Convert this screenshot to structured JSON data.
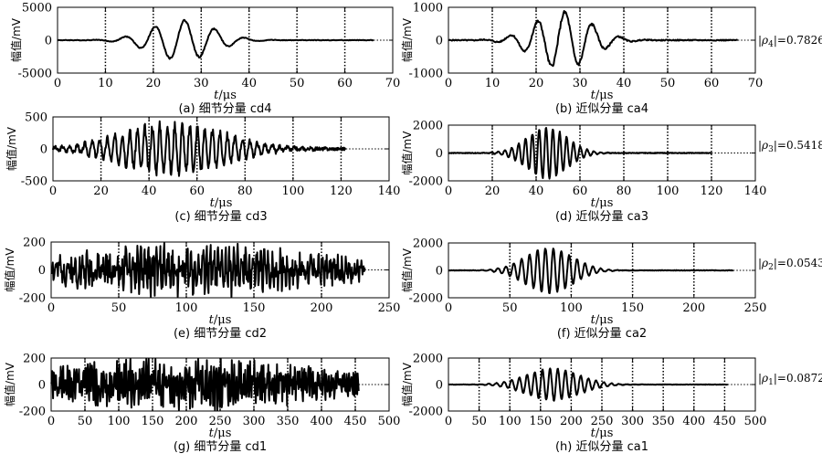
{
  "chart_data": [
    {
      "id": "cd4",
      "type": "line",
      "caption": "(a) 细节分量 cd4",
      "xlabel": "t/μs",
      "ylabel": "幅值/mV",
      "xlim": [
        0,
        70
      ],
      "xticks": [
        0,
        10,
        20,
        30,
        40,
        50,
        60,
        70
      ],
      "ylim": [
        -5000,
        5000
      ],
      "yticks": [
        5000,
        0,
        -5000
      ],
      "dotted_v": [
        10,
        20,
        30,
        40,
        50,
        60
      ],
      "series": [
        {
          "x_end": 66,
          "amp": 3000,
          "center": 26,
          "width": 9,
          "freq": 0.16,
          "noise": 100,
          "seed": 4,
          "points": 440
        }
      ]
    },
    {
      "id": "ca4",
      "type": "line",
      "caption": "(b) 近似分量 ca4",
      "xlabel": "t/μs",
      "ylabel": "幅值/mV",
      "xlim": [
        0,
        70
      ],
      "xticks": [
        0,
        10,
        20,
        30,
        40,
        50,
        60,
        70
      ],
      "ylim": [
        -1000,
        1000
      ],
      "yticks": [
        1000,
        0,
        -1000
      ],
      "dotted_v": [
        10,
        20,
        30,
        40,
        50,
        60
      ],
      "rho": "|ρ4|=0.7826",
      "series": [
        {
          "x_end": 66,
          "amp": 850,
          "center": 26,
          "width": 9,
          "freq": 0.16,
          "noise": 40,
          "seed": 5,
          "points": 440
        }
      ]
    },
    {
      "id": "cd3",
      "type": "line",
      "caption": "(c) 细节分量 cd3",
      "xlabel": "t/μs",
      "ylabel": "幅值/mV",
      "xlim": [
        0,
        140
      ],
      "xticks": [
        0,
        20,
        40,
        60,
        80,
        100,
        120,
        140
      ],
      "ylim": [
        -500,
        500
      ],
      "yticks": [
        500,
        0,
        -500
      ],
      "dotted_v": [
        20,
        40,
        60,
        80,
        100,
        120
      ],
      "series": [
        {
          "x_end": 122,
          "amp": 380,
          "center": 50,
          "width": 30,
          "freq": 0.32,
          "noise": 60,
          "seed": 3,
          "points": 560
        }
      ]
    },
    {
      "id": "ca3",
      "type": "line",
      "caption": "(d) 近似分量 ca3",
      "xlabel": "t/μs",
      "ylabel": "幅值/mV",
      "xlim": [
        0,
        140
      ],
      "xticks": [
        0,
        20,
        40,
        60,
        80,
        100,
        120,
        140
      ],
      "ylim": [
        -2000,
        2000
      ],
      "yticks": [
        2000,
        0,
        -2000
      ],
      "dotted_v": [
        20,
        40,
        60,
        80,
        100,
        120
      ],
      "rho": "|ρ3|=0.5418",
      "series": [
        {
          "x_end": 120,
          "amp": 1800,
          "center": 45,
          "width": 13,
          "freq": 0.32,
          "noise": 60,
          "seed": 6,
          "points": 560
        }
      ]
    },
    {
      "id": "cd2",
      "type": "line",
      "caption": "(e) 细节分量 cd2",
      "xlabel": "t/μs",
      "ylabel": "幅值/mV",
      "xlim": [
        0,
        250
      ],
      "xticks": [
        0,
        50,
        100,
        150,
        200,
        250
      ],
      "ylim": [
        -200,
        200
      ],
      "yticks": [
        200,
        0,
        -200
      ],
      "dotted_v": [
        50,
        100,
        150,
        200
      ],
      "series": [
        {
          "x_end": 232,
          "amp": 90,
          "center": 100,
          "width": 120,
          "freq": 0.35,
          "noise": 90,
          "seed": 2,
          "points": 560
        }
      ]
    },
    {
      "id": "ca2",
      "type": "line",
      "caption": "(f) 近似分量 ca2",
      "xlabel": "t/μs",
      "ylabel": "幅值/mV",
      "xlim": [
        0,
        250
      ],
      "xticks": [
        0,
        50,
        100,
        150,
        200,
        250
      ],
      "ylim": [
        -2000,
        2000
      ],
      "yticks": [
        2000,
        0,
        -2000
      ],
      "dotted_v": [
        50,
        100,
        150,
        200
      ],
      "rho": "|ρ2|=0.0543",
      "series": [
        {
          "x_end": 232,
          "amp": 1650,
          "center": 82,
          "width": 27,
          "freq": 0.155,
          "noise": 50,
          "seed": 7,
          "points": 560
        }
      ]
    },
    {
      "id": "cd1",
      "type": "line",
      "caption": "(g) 细节分量 cd1",
      "xlabel": "t/μs",
      "ylabel": "幅值/mV",
      "xlim": [
        0,
        500
      ],
      "xticks": [
        0,
        50,
        100,
        150,
        200,
        250,
        300,
        350,
        400,
        450,
        500
      ],
      "ylim": [
        -200,
        200
      ],
      "yticks": [
        200,
        0,
        -200
      ],
      "dotted_v": [
        50,
        100,
        150,
        200,
        250,
        300,
        350,
        400,
        450
      ],
      "series": [
        {
          "x_end": 455,
          "amp": 90,
          "center": 200,
          "width": 240,
          "freq": 0.3,
          "noise": 100,
          "seed": 1,
          "points": 640
        }
      ]
    },
    {
      "id": "ca1",
      "type": "line",
      "caption": "(h) 近似分量 ca1",
      "xlabel": "t/μs",
      "ylabel": "幅值/mV",
      "xlim": [
        0,
        500
      ],
      "xticks": [
        0,
        50,
        100,
        150,
        200,
        250,
        300,
        350,
        400,
        450,
        500
      ],
      "ylim": [
        -2000,
        2000
      ],
      "yticks": [
        2000,
        0,
        -2000
      ],
      "dotted_v": [
        50,
        100,
        150,
        200,
        250,
        300,
        350,
        400,
        450
      ],
      "rho": "|ρ1|=0.0872",
      "series": [
        {
          "x_end": 455,
          "amp": 1200,
          "center": 170,
          "width": 60,
          "freq": 0.08,
          "noise": 40,
          "seed": 8,
          "points": 640
        }
      ]
    }
  ]
}
